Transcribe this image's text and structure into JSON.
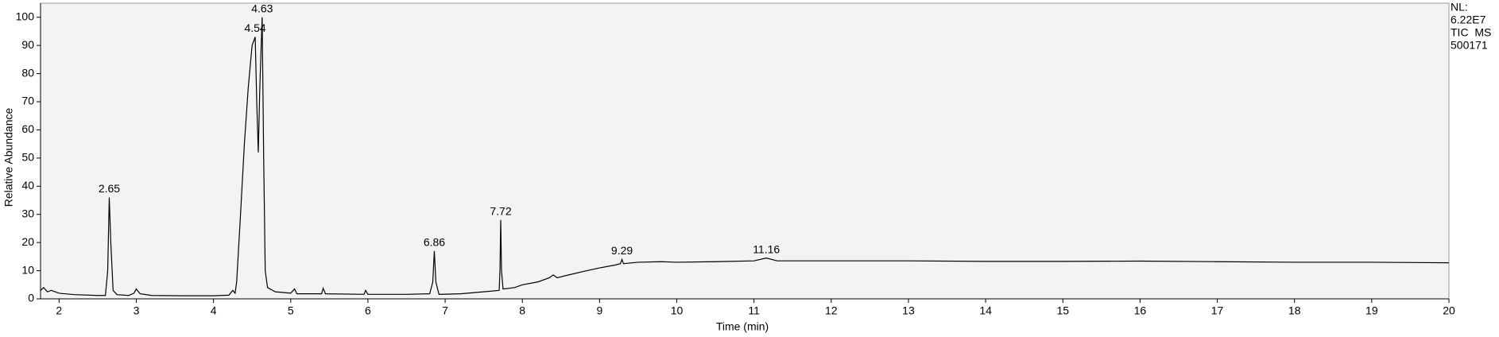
{
  "chart_data": {
    "type": "line",
    "x_label": "Time (min)",
    "y_label": "Relative Abundance",
    "side_labels": [
      "NL:",
      "6.22E7",
      "TIC  MS",
      "500171"
    ],
    "color": "#000000",
    "x": [
      1.76,
      1.8,
      1.85,
      1.9,
      2.0,
      2.2,
      2.5,
      2.6,
      2.63,
      2.65,
      2.67,
      2.7,
      2.75,
      2.9,
      2.97,
      3.0,
      3.05,
      3.2,
      3.6,
      4.0,
      4.2,
      4.25,
      4.28,
      4.3,
      4.35,
      4.4,
      4.45,
      4.5,
      4.54,
      4.56,
      4.58,
      4.6,
      4.63,
      4.65,
      4.67,
      4.7,
      4.8,
      5.0,
      5.05,
      5.08,
      5.4,
      5.42,
      5.45,
      5.95,
      5.97,
      6.0,
      6.5,
      6.8,
      6.84,
      6.86,
      6.88,
      6.92,
      7.2,
      7.5,
      7.7,
      7.71,
      7.72,
      7.73,
      7.75,
      7.9,
      8.0,
      8.2,
      8.35,
      8.4,
      8.45,
      8.6,
      8.8,
      9.0,
      9.2,
      9.27,
      9.29,
      9.31,
      9.5,
      9.8,
      10,
      10.5,
      11,
      11.16,
      11.3,
      12,
      13,
      14,
      15,
      16,
      17,
      18,
      19,
      20
    ],
    "values": [
      3,
      4,
      2.5,
      3,
      2,
      1.5,
      1.2,
      1.2,
      10,
      36,
      20,
      3,
      1.5,
      1.2,
      2,
      3.5,
      1.8,
      1.2,
      1.1,
      1.1,
      1.3,
      3,
      2,
      6,
      30,
      55,
      75,
      90,
      93,
      70,
      52,
      75,
      100,
      50,
      10,
      4,
      2.5,
      2,
      3.5,
      1.8,
      1.8,
      3.8,
      1.8,
      1.6,
      3,
      1.6,
      1.6,
      1.8,
      6,
      17,
      6,
      1.6,
      1.8,
      2.5,
      3,
      10,
      28,
      10,
      3.5,
      4,
      5,
      6,
      7.5,
      8.5,
      7.5,
      8.5,
      9.8,
      11,
      12,
      12.5,
      14,
      12.5,
      13,
      13.2,
      13,
      13.2,
      13.5,
      14.5,
      13.5,
      13.5,
      13.5,
      13.3,
      13.3,
      13.4,
      13.2,
      13,
      13,
      12.8
    ],
    "peaks": [
      {
        "x": 2.65,
        "y": 36
      },
      {
        "x": 4.54,
        "y": 93
      },
      {
        "x": 4.63,
        "y": 100
      },
      {
        "x": 6.86,
        "y": 17
      },
      {
        "x": 7.72,
        "y": 28
      },
      {
        "x": 9.29,
        "y": 14
      },
      {
        "x": 11.16,
        "y": 14.5
      }
    ],
    "xlim": [
      1.76,
      20
    ],
    "ylim": [
      0,
      105
    ],
    "xticks": [
      2,
      3,
      4,
      5,
      6,
      7,
      8,
      9,
      10,
      11,
      12,
      13,
      14,
      15,
      16,
      17,
      18,
      19,
      20
    ],
    "yticks": [
      0,
      10,
      20,
      30,
      40,
      50,
      60,
      70,
      80,
      90,
      100
    ],
    "grid": false
  }
}
